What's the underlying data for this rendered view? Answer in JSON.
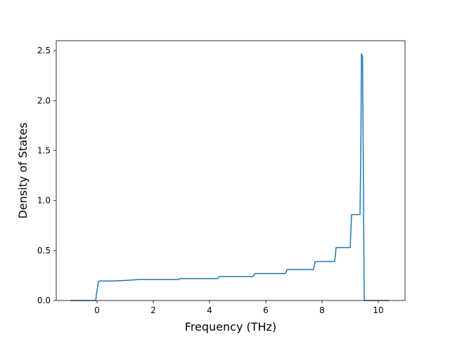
{
  "chart_data": {
    "type": "line",
    "title": "",
    "xlabel": "Frequency (THz)",
    "ylabel": "Density of States",
    "xlim": [
      -1.45,
      10.95
    ],
    "ylim": [
      0.0,
      2.6
    ],
    "xticks": [
      0,
      2,
      4,
      6,
      8,
      10
    ],
    "xtick_labels": [
      "0",
      "2",
      "4",
      "6",
      "8",
      "10"
    ],
    "yticks": [
      0.0,
      0.5,
      1.0,
      1.5,
      2.0,
      2.5
    ],
    "ytick_labels": [
      "0.0",
      "0.5",
      "1.0",
      "1.5",
      "2.0",
      "2.5"
    ],
    "grid": false,
    "legend": false,
    "colors": {
      "line": "#1f77b4",
      "axes": "#000000",
      "background": "#ffffff"
    },
    "series": [
      {
        "x": [
          -0.95,
          -0.05,
          0.0,
          0.05,
          0.1,
          0.5,
          1.0,
          1.5,
          2.0,
          2.9,
          2.95,
          3.5,
          4.3,
          4.35,
          5.0,
          5.55,
          5.6,
          6.0,
          6.7,
          6.75,
          7.2,
          7.7,
          7.75,
          8.0,
          8.45,
          8.5,
          8.8,
          9.0,
          9.05,
          9.2,
          9.3,
          9.35,
          9.38,
          9.4,
          9.44,
          9.47,
          9.5,
          9.55,
          10.0,
          10.4
        ],
        "y": [
          0.0,
          0.0,
          0.1,
          0.19,
          0.195,
          0.195,
          0.2,
          0.21,
          0.21,
          0.21,
          0.22,
          0.22,
          0.22,
          0.24,
          0.24,
          0.24,
          0.27,
          0.27,
          0.27,
          0.31,
          0.31,
          0.31,
          0.39,
          0.39,
          0.39,
          0.53,
          0.53,
          0.53,
          0.86,
          0.86,
          0.86,
          0.86,
          1.5,
          2.47,
          2.44,
          1.2,
          0.0,
          0.0,
          0.0,
          0.0
        ]
      }
    ]
  }
}
